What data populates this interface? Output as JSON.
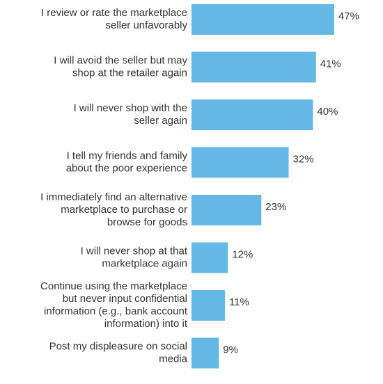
{
  "chart_data": {
    "type": "bar",
    "orientation": "horizontal",
    "color": "#65b8e5",
    "categories": [
      [
        "I review or rate the marketplace",
        "seller unfavorably"
      ],
      [
        "I will avoid the seller but may",
        "shop at the retailer again"
      ],
      [
        "I will never shop with the",
        "seller again"
      ],
      [
        "I tell my friends and family",
        "about the poor experience"
      ],
      [
        "I immediately find an alternative",
        "marketplace to purchase or",
        "browse for goods"
      ],
      [
        "I will never shop at that",
        "marketplace again"
      ],
      [
        "Continue using the marketplace",
        "but never input confidential",
        "information (e.g., bank account",
        "information) into it"
      ],
      [
        "Post my displeasure on social",
        "media"
      ]
    ],
    "values": [
      47,
      41,
      40,
      32,
      23,
      12,
      11,
      9
    ],
    "value_labels": [
      "47%",
      "41%",
      "40%",
      "32%",
      "23%",
      "12%",
      "11%",
      "9%"
    ]
  }
}
